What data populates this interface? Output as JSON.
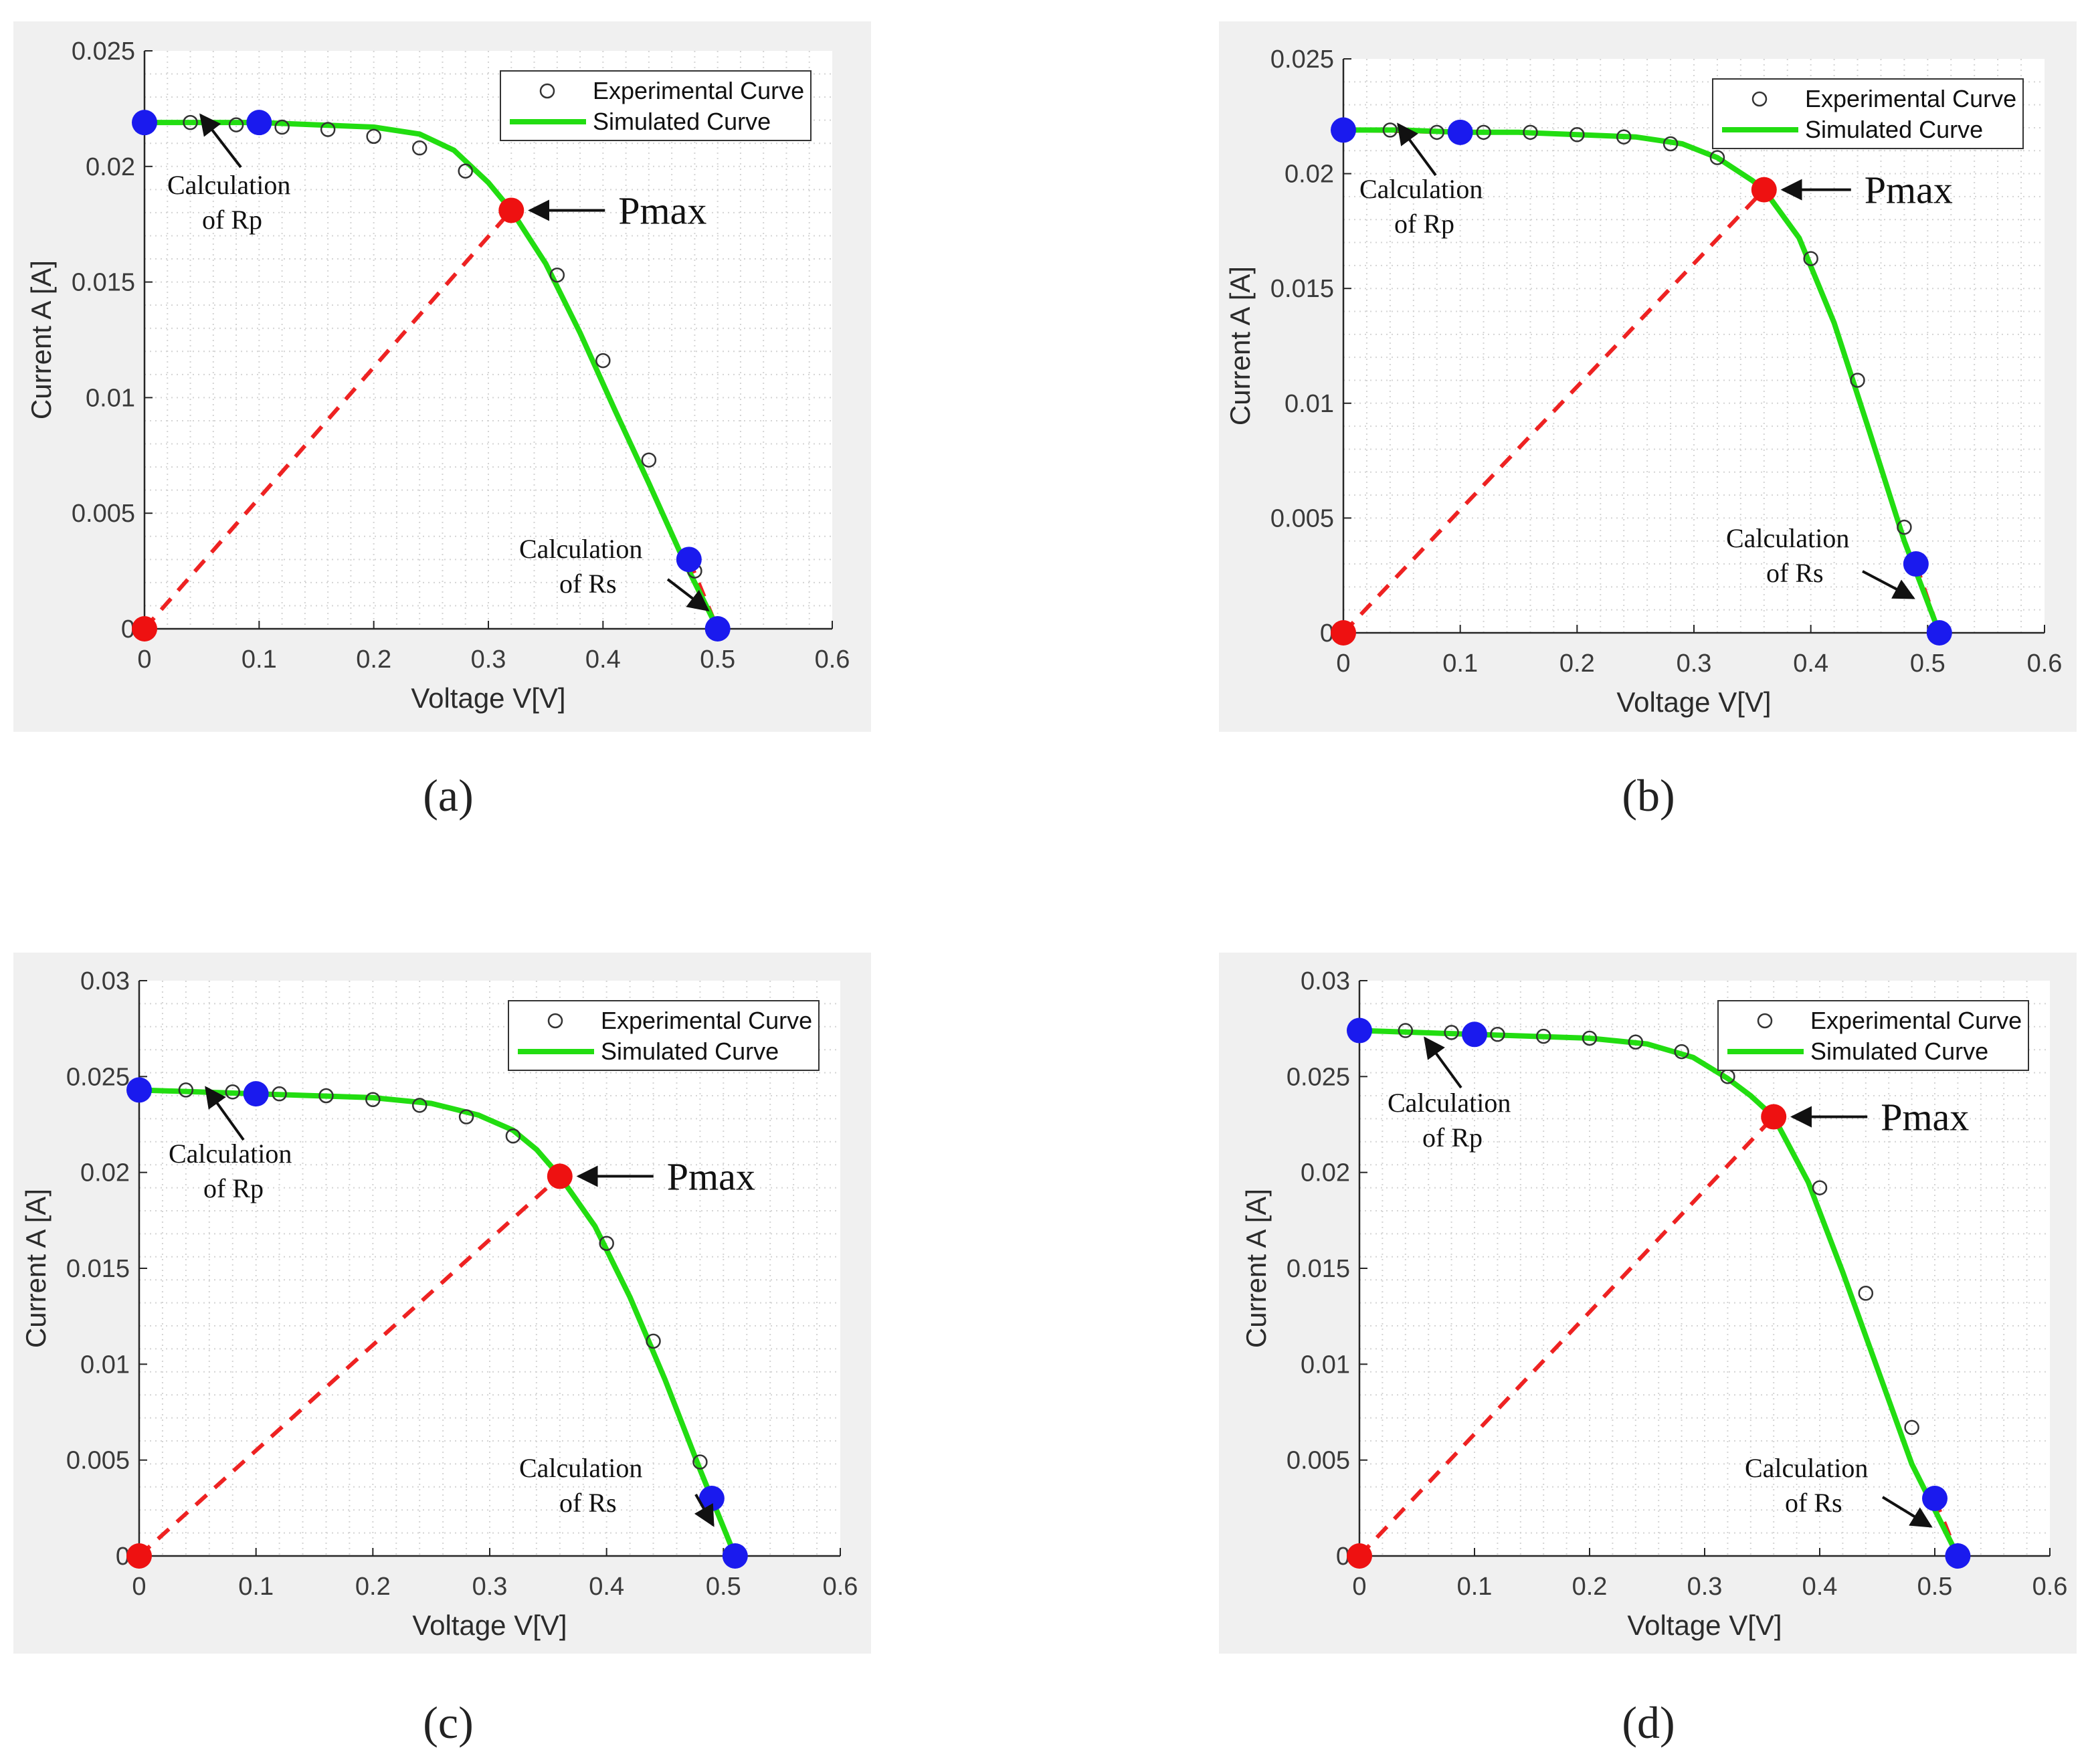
{
  "figure": {
    "panel_labels": [
      "(a)",
      "(b)",
      "(c)",
      "(d)"
    ]
  },
  "colors": {
    "simulated": "#22dd11",
    "dashed": "#ee2222",
    "blue_marker": "#1a1aee",
    "red_marker": "#ee1111",
    "experimental": "#333333",
    "panel_bg": "#f0f0f0"
  },
  "chart_data": [
    {
      "type": "line",
      "title": "",
      "xlabel": "Voltage V[V]",
      "ylabel": "Current A [A]",
      "xlim": [
        0,
        0.6
      ],
      "ylim": [
        0,
        0.025
      ],
      "x_ticks": [
        0,
        0.1,
        0.2,
        0.3,
        0.4,
        0.5,
        0.6
      ],
      "x_tick_labels": [
        "0",
        "0.1",
        "0.2",
        "0.3",
        "0.4",
        "0.5",
        "0.6"
      ],
      "y_ticks": [
        0,
        0.005,
        0.01,
        0.015,
        0.02,
        0.025
      ],
      "y_tick_labels": [
        "0",
        "0.005",
        "0.01",
        "0.015",
        "0.02",
        "0.025"
      ],
      "grid": true,
      "legend": {
        "position": "top-right",
        "entries": [
          "Experimental Curve",
          "Simulated Curve"
        ]
      },
      "series": [
        {
          "name": "Experimental Curve",
          "x": [
            0.04,
            0.08,
            0.12,
            0.16,
            0.2,
            0.24,
            0.28,
            0.36,
            0.4,
            0.44,
            0.48
          ],
          "y": [
            0.0219,
            0.0218,
            0.0217,
            0.0216,
            0.0213,
            0.0208,
            0.0198,
            0.0153,
            0.0116,
            0.0073,
            0.0025
          ]
        },
        {
          "name": "Simulated Curve",
          "x": [
            0,
            0.05,
            0.1,
            0.15,
            0.2,
            0.24,
            0.27,
            0.3,
            0.32,
            0.35,
            0.38,
            0.41,
            0.44,
            0.47,
            0.5
          ],
          "y": [
            0.0219,
            0.0219,
            0.0219,
            0.0218,
            0.0217,
            0.0214,
            0.0207,
            0.0193,
            0.0181,
            0.0158,
            0.0128,
            0.0095,
            0.0063,
            0.003,
            0.0
          ]
        }
      ],
      "dashed_lines": [
        [
          [
            0,
            0
          ],
          [
            0.32,
            0.0181
          ]
        ],
        [
          [
            0,
            0.0219
          ],
          [
            0.1,
            0.0219
          ]
        ],
        [
          [
            0.475,
            0.003
          ],
          [
            0.5,
            0.0
          ]
        ]
      ],
      "markers": [
        {
          "color": "blue",
          "x": 0,
          "y": 0.0219
        },
        {
          "color": "blue",
          "x": 0.1,
          "y": 0.0219
        },
        {
          "color": "blue",
          "x": 0.475,
          "y": 0.003
        },
        {
          "color": "blue",
          "x": 0.5,
          "y": 0.0
        },
        {
          "color": "red",
          "x": 0,
          "y": 0
        },
        {
          "color": "red",
          "x": 0.32,
          "y": 0.0181
        }
      ],
      "annotations": {
        "pmax": {
          "text": "Pmax",
          "x": 0.32,
          "y": 0.0181
        },
        "rp": {
          "line1": "Calculation",
          "line2": "of Rp"
        },
        "rs": {
          "line1": "Calculation",
          "line2": "of Rs"
        }
      }
    },
    {
      "type": "line",
      "title": "",
      "xlabel": "Voltage V[V]",
      "ylabel": "Current A [A]",
      "xlim": [
        0,
        0.6
      ],
      "ylim": [
        0,
        0.025
      ],
      "x_ticks": [
        0,
        0.1,
        0.2,
        0.3,
        0.4,
        0.5,
        0.6
      ],
      "x_tick_labels": [
        "0",
        "0.1",
        "0.2",
        "0.3",
        "0.4",
        "0.5",
        "0.6"
      ],
      "y_ticks": [
        0,
        0.005,
        0.01,
        0.015,
        0.02,
        0.025
      ],
      "y_tick_labels": [
        "0",
        "0.005",
        "0.01",
        "0.015",
        "0.02",
        "0.025"
      ],
      "grid": true,
      "legend": {
        "position": "top-right",
        "entries": [
          "Experimental Curve",
          "Simulated Curve"
        ]
      },
      "series": [
        {
          "name": "Experimental Curve",
          "x": [
            0.04,
            0.08,
            0.12,
            0.16,
            0.2,
            0.24,
            0.28,
            0.32,
            0.4,
            0.44,
            0.48
          ],
          "y": [
            0.0219,
            0.0218,
            0.0218,
            0.0218,
            0.0217,
            0.0216,
            0.0213,
            0.0207,
            0.0163,
            0.011,
            0.0046
          ]
        },
        {
          "name": "Simulated Curve",
          "x": [
            0,
            0.05,
            0.1,
            0.15,
            0.2,
            0.25,
            0.29,
            0.32,
            0.35,
            0.36,
            0.39,
            0.42,
            0.45,
            0.48,
            0.51
          ],
          "y": [
            0.0219,
            0.0219,
            0.0218,
            0.0218,
            0.0217,
            0.0216,
            0.0213,
            0.0207,
            0.0197,
            0.0193,
            0.0172,
            0.0135,
            0.0088,
            0.004,
            0.0
          ]
        }
      ],
      "dashed_lines": [
        [
          [
            0,
            0
          ],
          [
            0.36,
            0.0193
          ]
        ],
        [
          [
            0,
            0.0219
          ],
          [
            0.1,
            0.0218
          ]
        ],
        [
          [
            0.49,
            0.003
          ],
          [
            0.51,
            0.0
          ]
        ]
      ],
      "markers": [
        {
          "color": "blue",
          "x": 0,
          "y": 0.0219
        },
        {
          "color": "blue",
          "x": 0.1,
          "y": 0.0218
        },
        {
          "color": "blue",
          "x": 0.49,
          "y": 0.003
        },
        {
          "color": "blue",
          "x": 0.51,
          "y": 0.0
        },
        {
          "color": "red",
          "x": 0,
          "y": 0
        },
        {
          "color": "red",
          "x": 0.36,
          "y": 0.0193
        }
      ],
      "annotations": {
        "pmax": {
          "text": "Pmax",
          "x": 0.36,
          "y": 0.0193
        },
        "rp": {
          "line1": "Calculation",
          "line2": "of Rp"
        },
        "rs": {
          "line1": "Calculation",
          "line2": "of Rs"
        }
      }
    },
    {
      "type": "line",
      "title": "",
      "xlabel": "Voltage V[V]",
      "ylabel": "Current A [A]",
      "xlim": [
        0,
        0.6
      ],
      "ylim": [
        0,
        0.03
      ],
      "x_ticks": [
        0,
        0.1,
        0.2,
        0.3,
        0.4,
        0.5,
        0.6
      ],
      "x_tick_labels": [
        "0",
        "0.1",
        "0.2",
        "0.3",
        "0.4",
        "0.5",
        "0.6"
      ],
      "y_ticks": [
        0,
        0.005,
        0.01,
        0.015,
        0.02,
        0.025,
        0.03
      ],
      "y_tick_labels": [
        "0",
        "0.005",
        "0.01",
        "0.015",
        "0.02",
        "0.025",
        "0.03"
      ],
      "grid": true,
      "legend": {
        "position": "top-right",
        "entries": [
          "Experimental Curve",
          "Simulated Curve"
        ]
      },
      "series": [
        {
          "name": "Experimental Curve",
          "x": [
            0.04,
            0.08,
            0.12,
            0.16,
            0.2,
            0.24,
            0.28,
            0.32,
            0.4,
            0.44,
            0.48
          ],
          "y": [
            0.0243,
            0.0242,
            0.0241,
            0.024,
            0.0238,
            0.0235,
            0.0229,
            0.0219,
            0.0163,
            0.0112,
            0.0049
          ]
        },
        {
          "name": "Simulated Curve",
          "x": [
            0,
            0.05,
            0.1,
            0.15,
            0.2,
            0.25,
            0.29,
            0.32,
            0.34,
            0.36,
            0.39,
            0.42,
            0.45,
            0.48,
            0.51
          ],
          "y": [
            0.0243,
            0.0242,
            0.0241,
            0.024,
            0.0239,
            0.0236,
            0.023,
            0.0222,
            0.0212,
            0.0198,
            0.0172,
            0.0135,
            0.0092,
            0.0045,
            0.0
          ]
        }
      ],
      "dashed_lines": [
        [
          [
            0,
            0
          ],
          [
            0.36,
            0.0198
          ]
        ],
        [
          [
            0,
            0.0243
          ],
          [
            0.1,
            0.0241
          ]
        ],
        [
          [
            0.49,
            0.003
          ],
          [
            0.51,
            0.0
          ]
        ]
      ],
      "markers": [
        {
          "color": "blue",
          "x": 0,
          "y": 0.0243
        },
        {
          "color": "blue",
          "x": 0.1,
          "y": 0.0241
        },
        {
          "color": "blue",
          "x": 0.49,
          "y": 0.003
        },
        {
          "color": "blue",
          "x": 0.51,
          "y": 0.0
        },
        {
          "color": "red",
          "x": 0,
          "y": 0
        },
        {
          "color": "red",
          "x": 0.36,
          "y": 0.0198
        }
      ],
      "annotations": {
        "pmax": {
          "text": "Pmax",
          "x": 0.36,
          "y": 0.0198
        },
        "rp": {
          "line1": "Calculation",
          "line2": "of Rp"
        },
        "rs": {
          "line1": "Calculation",
          "line2": "of Rs"
        }
      }
    },
    {
      "type": "line",
      "title": "",
      "xlabel": "Voltage V[V]",
      "ylabel": "Current A [A]",
      "xlim": [
        0,
        0.6
      ],
      "ylim": [
        0,
        0.03
      ],
      "x_ticks": [
        0,
        0.1,
        0.2,
        0.3,
        0.4,
        0.5,
        0.6
      ],
      "x_tick_labels": [
        "0",
        "0.1",
        "0.2",
        "0.3",
        "0.4",
        "0.5",
        "0.6"
      ],
      "y_ticks": [
        0,
        0.005,
        0.01,
        0.015,
        0.02,
        0.025,
        0.03
      ],
      "y_tick_labels": [
        "0",
        "0.005",
        "0.01",
        "0.015",
        "0.02",
        "0.025",
        "0.03"
      ],
      "grid": true,
      "legend": {
        "position": "top-right",
        "entries": [
          "Experimental Curve",
          "Simulated Curve"
        ]
      },
      "series": [
        {
          "name": "Experimental Curve",
          "x": [
            0.04,
            0.08,
            0.12,
            0.16,
            0.2,
            0.24,
            0.28,
            0.32,
            0.4,
            0.44,
            0.48
          ],
          "y": [
            0.0274,
            0.0273,
            0.0272,
            0.0271,
            0.027,
            0.0268,
            0.0263,
            0.025,
            0.0192,
            0.0137,
            0.0067
          ]
        },
        {
          "name": "Simulated Curve",
          "x": [
            0,
            0.05,
            0.1,
            0.15,
            0.2,
            0.25,
            0.29,
            0.32,
            0.34,
            0.36,
            0.39,
            0.42,
            0.45,
            0.48,
            0.52
          ],
          "y": [
            0.0274,
            0.0273,
            0.0272,
            0.0271,
            0.027,
            0.0267,
            0.026,
            0.0249,
            0.024,
            0.0229,
            0.0195,
            0.0148,
            0.0098,
            0.0048,
            0.0
          ]
        }
      ],
      "dashed_lines": [
        [
          [
            0,
            0
          ],
          [
            0.36,
            0.0229
          ]
        ],
        [
          [
            0,
            0.0274
          ],
          [
            0.1,
            0.0272
          ]
        ],
        [
          [
            0.5,
            0.003
          ],
          [
            0.52,
            0.0
          ]
        ]
      ],
      "markers": [
        {
          "color": "blue",
          "x": 0,
          "y": 0.0274
        },
        {
          "color": "blue",
          "x": 0.1,
          "y": 0.0272
        },
        {
          "color": "blue",
          "x": 0.5,
          "y": 0.003
        },
        {
          "color": "blue",
          "x": 0.52,
          "y": 0.0
        },
        {
          "color": "red",
          "x": 0,
          "y": 0
        },
        {
          "color": "red",
          "x": 0.36,
          "y": 0.0229
        }
      ],
      "annotations": {
        "pmax": {
          "text": "Pmax",
          "x": 0.36,
          "y": 0.0229
        },
        "rp": {
          "line1": "Calculation",
          "line2": "of Rp"
        },
        "rs": {
          "line1": "Calculation",
          "line2": "of Rs"
        }
      }
    }
  ]
}
